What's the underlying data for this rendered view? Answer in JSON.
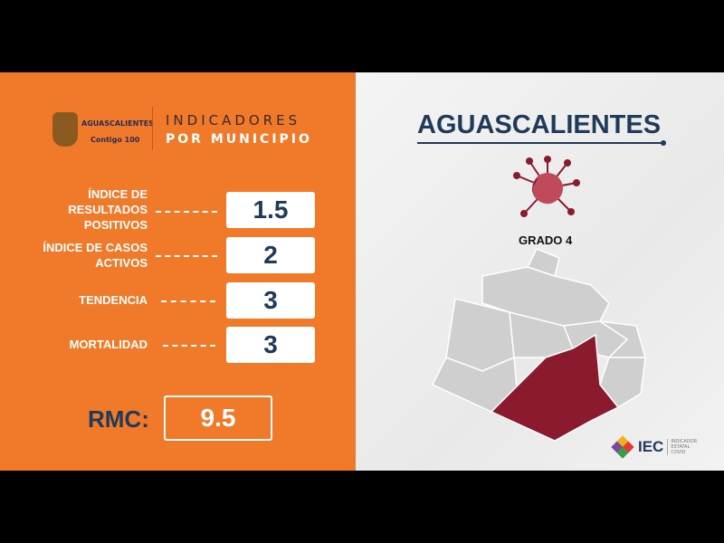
{
  "header": {
    "logo_text": "AGUASCALIENTES",
    "logo_sub": "Contigo 100",
    "title_line1": "INDICADORES",
    "title_line2": "POR MUNICIPIO"
  },
  "indicators": [
    {
      "label": "ÍNDICE DE RESULTADOS POSITIVOS",
      "value": "1.5"
    },
    {
      "label": "ÍNDICE DE CASOS ACTIVOS",
      "value": "2"
    },
    {
      "label": "TENDENCIA",
      "value": "3"
    },
    {
      "label": "MORTALIDAD",
      "value": "3"
    }
  ],
  "rmc": {
    "label": "RMC:",
    "value": "9.5"
  },
  "municipality": {
    "name": "AGUASCALIENTES",
    "grade": "GRADO 4",
    "highlight_color": "#8b1a2e",
    "virus_icon": "coronavirus-icon"
  },
  "footer": {
    "logo": "IEC",
    "logo_sub": "INDICADOR ESTATAL COVID"
  },
  "colors": {
    "orange": "#f07a2a",
    "navy": "#1f3a5a",
    "map_gray": "#cfcfcf"
  }
}
